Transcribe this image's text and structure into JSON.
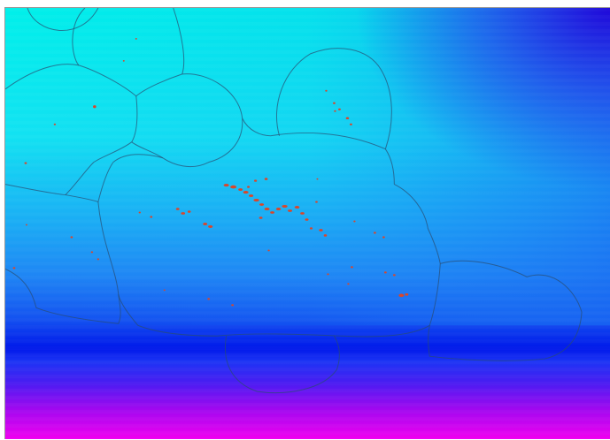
{
  "map": {
    "title": "",
    "color_scale": {
      "colors": [
        "#00f0ea",
        "#10d8f2",
        "#20a8f4",
        "#1f7cf4",
        "#1346f0",
        "#0018ea",
        "#3c10f0",
        "#8208f0",
        "#c402f0",
        "#f000f0"
      ],
      "corner_accent": "#2000d8"
    },
    "overlay": {
      "boundary_line_color": "#2a4c70",
      "point_color": "#d8472c"
    },
    "regions": [
      "region-northwest-corner",
      "region-north-west-lobe",
      "region-west-upper",
      "region-west-notch",
      "region-center-north",
      "region-northeast-island-zone",
      "region-central-main",
      "region-southwest",
      "region-east-lobe",
      "region-south-lobe"
    ],
    "point_clusters": [
      "cluster-central-chain",
      "cluster-northeast",
      "cluster-west",
      "cluster-southeast",
      "cluster-scattered"
    ]
  }
}
